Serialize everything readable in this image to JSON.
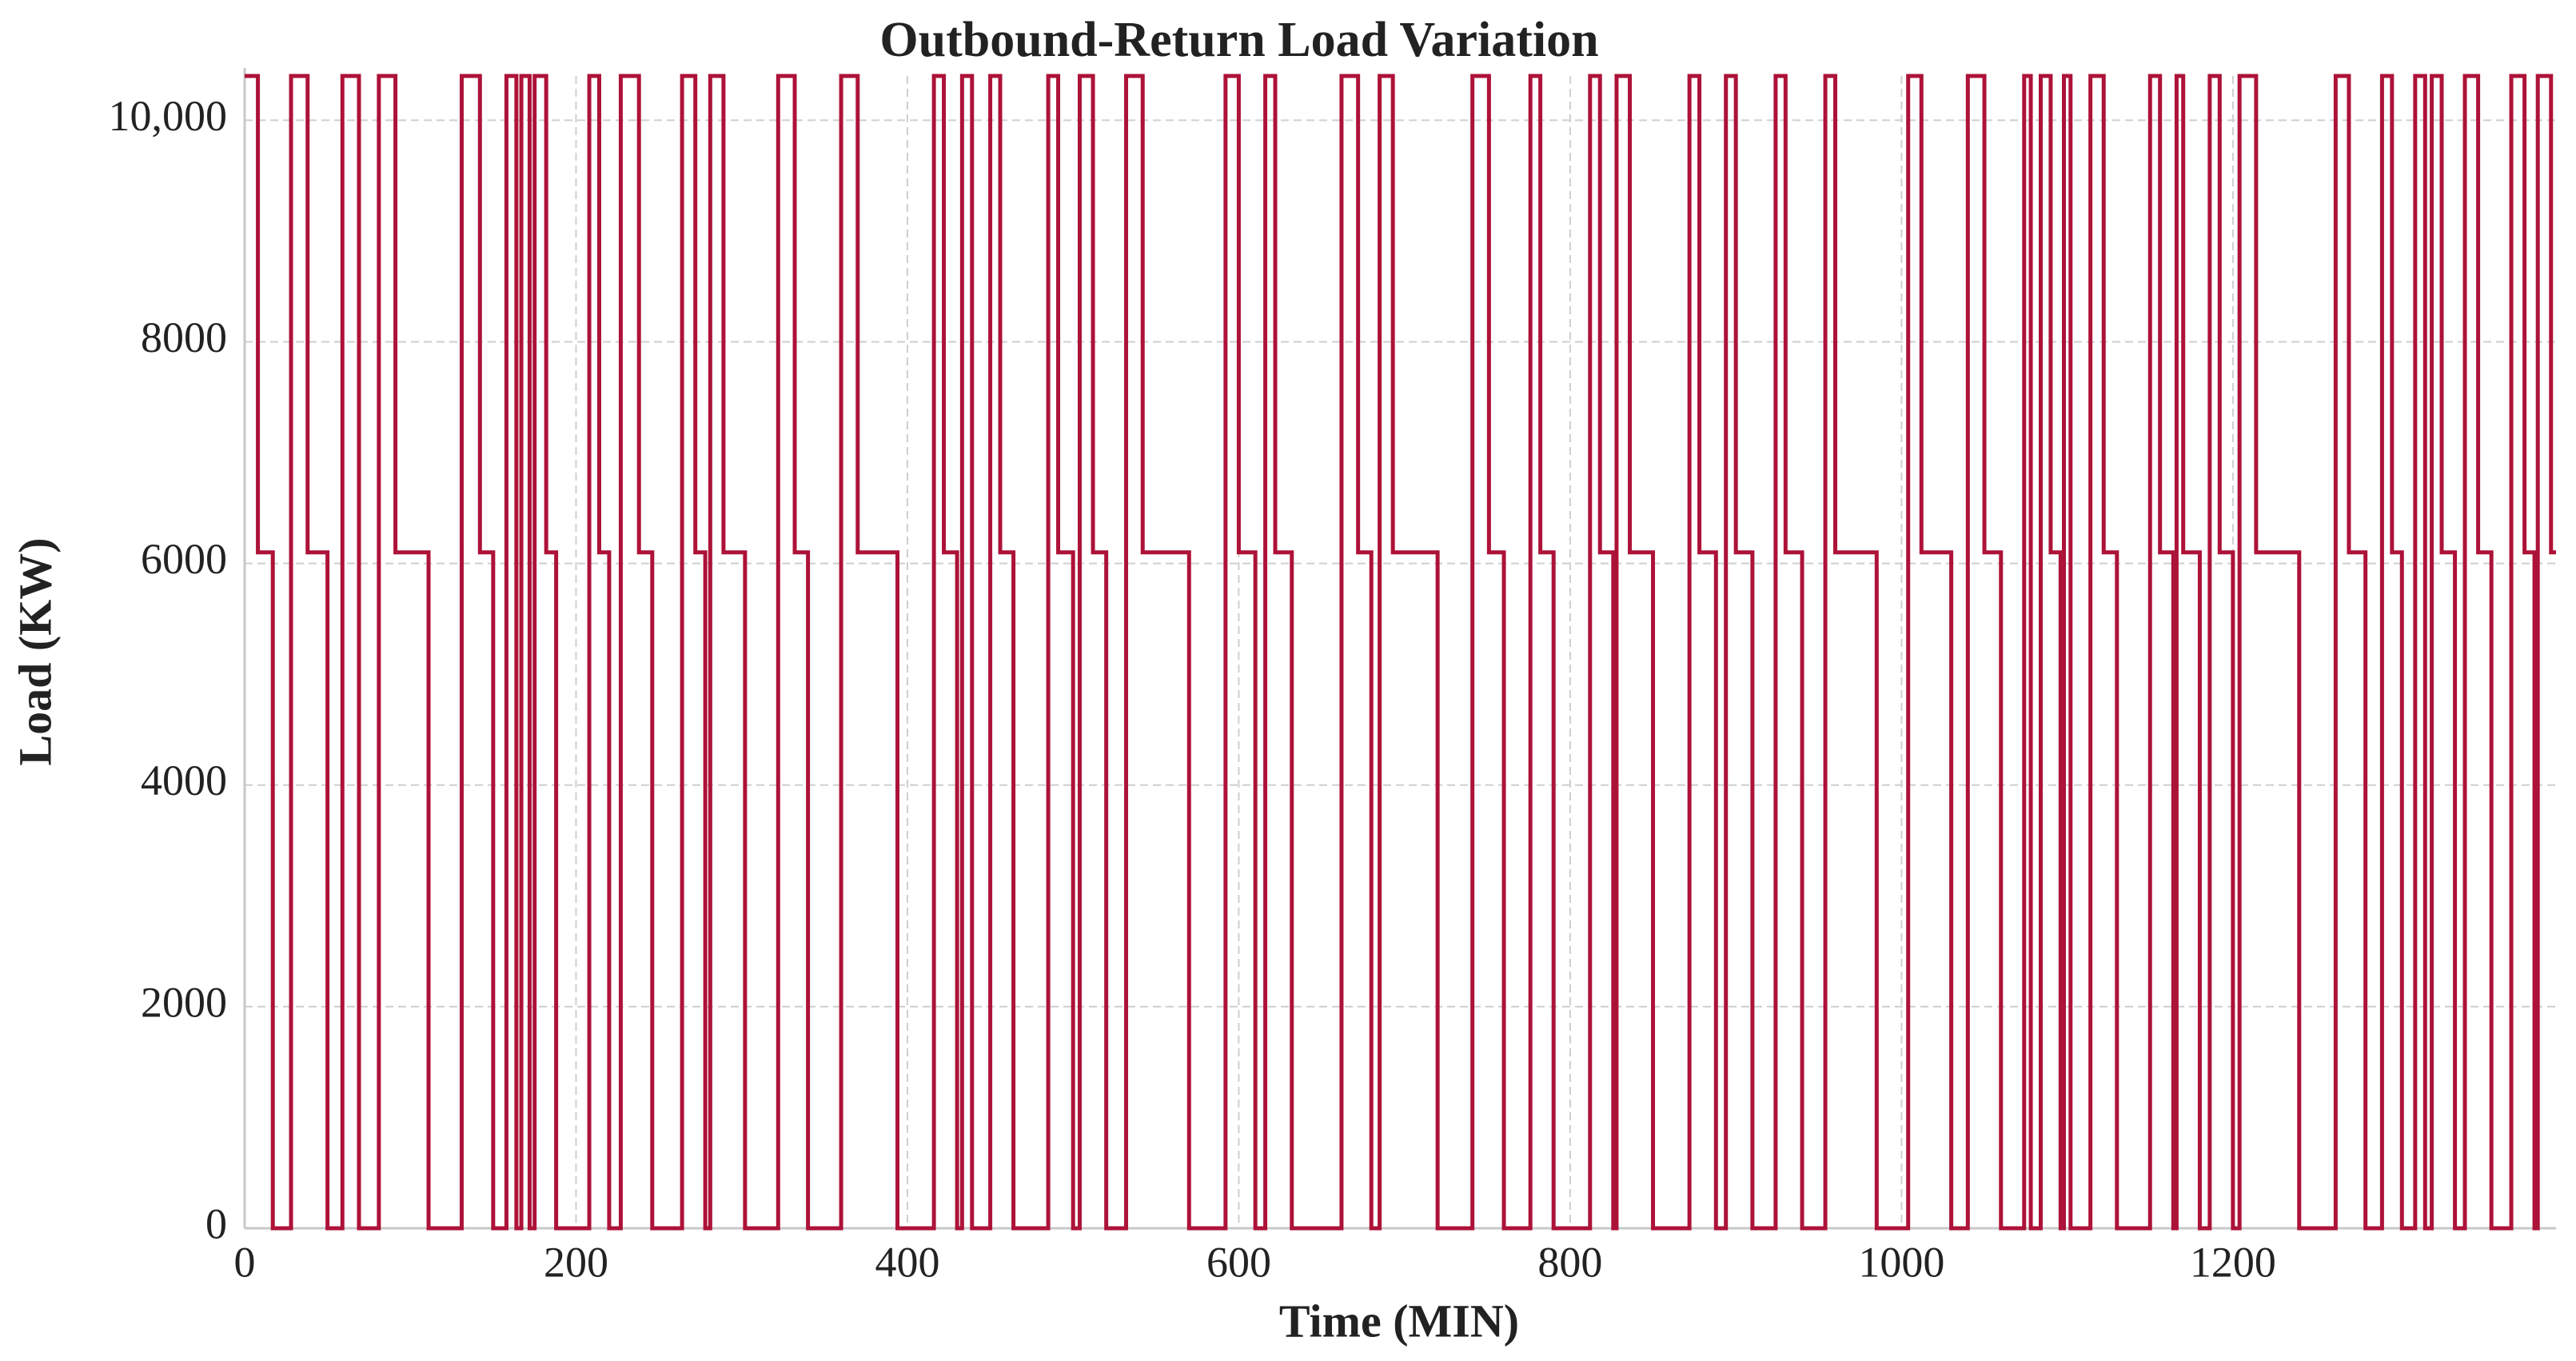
{
  "chart_data": {
    "type": "line",
    "step": "post",
    "title": "Outbound-Return Load Variation",
    "x_label": "Time (MIN)",
    "y_label": "Load (KW)",
    "color": "#ad1238",
    "grid": true,
    "xlim": [
      0,
      1395
    ],
    "ylim": [
      0,
      10400
    ],
    "xticks": [
      0,
      200,
      400,
      600,
      800,
      1000,
      1200
    ],
    "yticks": [
      0,
      2000,
      4000,
      6000,
      8000,
      {
        "value": 10000,
        "label": "10,000"
      }
    ],
    "x": [
      0,
      8,
      17,
      28,
      38,
      50,
      59,
      69,
      81,
      91,
      111,
      131,
      142,
      150,
      158,
      164,
      167,
      172,
      175,
      182,
      188,
      208,
      214,
      220,
      227,
      238,
      246,
      264,
      272,
      278,
      281,
      289,
      302,
      322,
      332,
      340,
      360,
      370,
      394,
      416,
      422,
      430,
      433,
      439,
      450,
      456,
      464,
      485,
      491,
      500,
      504,
      512,
      520,
      532,
      542,
      570,
      592,
      600,
      610,
      616,
      622,
      632,
      662,
      672,
      680,
      685,
      693,
      720,
      741,
      751,
      760,
      776,
      782,
      790,
      812,
      818,
      826,
      828,
      836,
      850,
      872,
      878,
      888,
      894,
      900,
      910,
      924,
      930,
      940,
      954,
      960,
      985,
      1004,
      1012,
      1030,
      1040,
      1050,
      1060,
      1074,
      1078,
      1084,
      1090,
      1096,
      1098,
      1102,
      1114,
      1122,
      1130,
      1150,
      1156,
      1164,
      1166,
      1170,
      1180,
      1186,
      1192,
      1200,
      1204,
      1214,
      1240,
      1262,
      1270,
      1280,
      1290,
      1296,
      1302,
      1310,
      1316,
      1320,
      1326,
      1334,
      1340,
      1348,
      1356,
      1368,
      1376,
      1382,
      1384,
      1392
    ],
    "values": [
      10400,
      6100,
      0,
      10400,
      6100,
      0,
      10400,
      0,
      10400,
      6100,
      0,
      10400,
      6100,
      0,
      10400,
      0,
      10400,
      0,
      10400,
      6100,
      0,
      10400,
      6100,
      0,
      10400,
      6100,
      0,
      10400,
      6100,
      0,
      10400,
      6100,
      0,
      10400,
      6100,
      0,
      10400,
      6100,
      0,
      10400,
      6100,
      0,
      10400,
      0,
      10400,
      6100,
      0,
      10400,
      6100,
      0,
      10400,
      6100,
      0,
      10400,
      6100,
      0,
      10400,
      6100,
      0,
      10400,
      6100,
      0,
      10400,
      6100,
      0,
      10400,
      6100,
      0,
      10400,
      6100,
      0,
      10400,
      6100,
      0,
      10400,
      6100,
      0,
      10400,
      6100,
      0,
      10400,
      6100,
      0,
      10400,
      6100,
      0,
      10400,
      6100,
      0,
      10400,
      6100,
      0,
      10400,
      6100,
      0,
      10400,
      6100,
      0,
      10400,
      0,
      10400,
      6100,
      0,
      10400,
      0,
      10400,
      6100,
      0,
      10400,
      6100,
      0,
      10400,
      6100,
      0,
      10400,
      6100,
      0,
      10400,
      6100,
      0,
      10400,
      6100,
      0,
      10400,
      6100,
      0,
      10400,
      0,
      10400,
      6100,
      0,
      10400,
      6100,
      0,
      10400,
      6100,
      0,
      10400,
      6100
    ]
  }
}
